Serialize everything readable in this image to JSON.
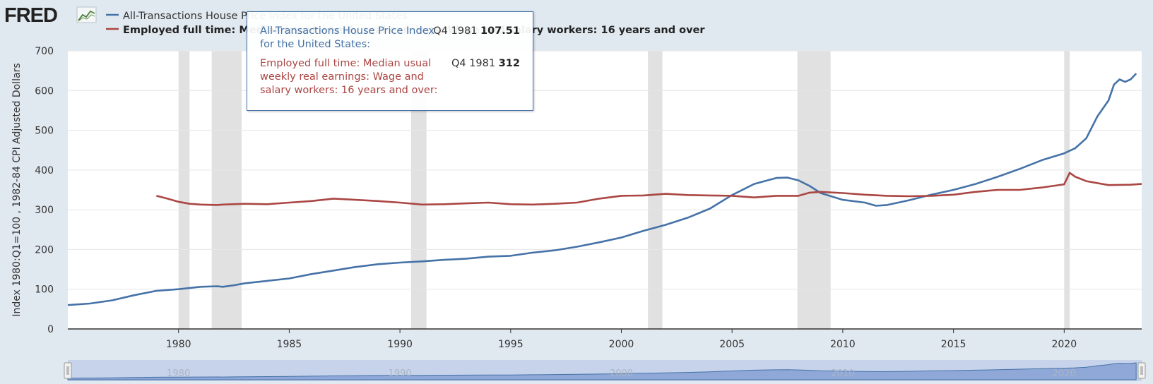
{
  "header": {
    "logo_text": "FRED",
    "logo_icon": "fred-chart-icon"
  },
  "colors": {
    "background": "#e1e9f0",
    "plot_bg": "#ffffff",
    "series1": "#4572a7",
    "series2": "#aa4643",
    "recession": "#e1e1e1",
    "navigator_fill": "#8fa8d8"
  },
  "tooltip": {
    "s1_name": "All-Transactions House Price Index for the United States:",
    "s1_period": "Q4 1981",
    "s1_value": "107.51",
    "s2_name": "Employed full time: Median usual weekly real earnings: Wage and salary workers: 16 years and over:",
    "s2_period": "Q4 1981",
    "s2_value": "312"
  },
  "chart_data": {
    "type": "line",
    "ylabel": "Index 1980:Q1=100 , 1982-84 CPI Adjusted Dollars",
    "ylim": [
      0,
      700
    ],
    "yticks": [
      0,
      100,
      200,
      300,
      400,
      500,
      600,
      700
    ],
    "xlim": [
      1975.0,
      2023.5
    ],
    "xticks": [
      1980,
      1985,
      1990,
      1995,
      2000,
      2005,
      2010,
      2015,
      2020
    ],
    "grid": true,
    "legend_placement": "top-left",
    "recessions": [
      [
        1980.0,
        1980.5
      ],
      [
        1981.5,
        1982.85
      ],
      [
        1990.5,
        1991.2
      ],
      [
        2001.2,
        2001.85
      ],
      [
        2007.95,
        2009.45
      ],
      [
        2020.0,
        2020.25
      ]
    ],
    "series": [
      {
        "name": "All-Transactions House Price Index for the United States",
        "color": "#4572a7",
        "x": [
          1975.0,
          1976.0,
          1977.0,
          1978.0,
          1979.0,
          1980.0,
          1981.0,
          1981.75,
          1982.0,
          1982.5,
          1983.0,
          1984.0,
          1985.0,
          1986.0,
          1987.0,
          1988.0,
          1989.0,
          1990.0,
          1991.0,
          1992.0,
          1993.0,
          1994.0,
          1995.0,
          1996.0,
          1997.0,
          1998.0,
          1999.0,
          2000.0,
          2001.0,
          2002.0,
          2003.0,
          2004.0,
          2005.0,
          2006.0,
          2007.0,
          2007.5,
          2008.0,
          2008.5,
          2009.0,
          2010.0,
          2011.0,
          2011.5,
          2012.0,
          2013.0,
          2014.0,
          2015.0,
          2016.0,
          2017.0,
          2018.0,
          2019.0,
          2020.0,
          2020.5,
          2021.0,
          2021.5,
          2022.0,
          2022.25,
          2022.5,
          2022.75,
          2023.0,
          2023.25
        ],
        "y": [
          60,
          64,
          72,
          85,
          96,
          100,
          106,
          107.51,
          106,
          110,
          115,
          121,
          127,
          138,
          147,
          156,
          163,
          167,
          170,
          174,
          177,
          182,
          184,
          192,
          198,
          207,
          218,
          230,
          247,
          262,
          280,
          303,
          337,
          365,
          380,
          381,
          374,
          360,
          342,
          325,
          318,
          310,
          312,
          324,
          338,
          350,
          365,
          383,
          403,
          425,
          442,
          455,
          480,
          535,
          575,
          615,
          628,
          622,
          628,
          643
        ]
      },
      {
        "name": "Employed full time: Median usual weekly real earnings: Wage and salary workers: 16 years and over",
        "color": "#aa4643",
        "x": [
          1979.0,
          1979.5,
          1980.0,
          1980.5,
          1981.0,
          1981.75,
          1982.0,
          1983.0,
          1984.0,
          1985.0,
          1986.0,
          1987.0,
          1988.0,
          1989.0,
          1990.0,
          1991.0,
          1992.0,
          1993.0,
          1994.0,
          1995.0,
          1996.0,
          1997.0,
          1998.0,
          1999.0,
          2000.0,
          2001.0,
          2002.0,
          2003.0,
          2004.0,
          2005.0,
          2006.0,
          2007.0,
          2008.0,
          2008.5,
          2009.0,
          2010.0,
          2011.0,
          2012.0,
          2013.0,
          2014.0,
          2015.0,
          2016.0,
          2017.0,
          2018.0,
          2019.0,
          2020.0,
          2020.25,
          2020.5,
          2021.0,
          2022.0,
          2023.0,
          2023.5
        ],
        "y": [
          335,
          328,
          320,
          315,
          313,
          312,
          313,
          315,
          314,
          318,
          322,
          328,
          325,
          322,
          318,
          313,
          314,
          316,
          318,
          314,
          313,
          315,
          318,
          328,
          335,
          336,
          340,
          337,
          336,
          335,
          331,
          335,
          335,
          343,
          345,
          342,
          338,
          335,
          334,
          335,
          338,
          345,
          350,
          350,
          356,
          364,
          393,
          383,
          372,
          362,
          363,
          365
        ]
      }
    ],
    "navigator": {
      "xticks": [
        1980,
        1990,
        2000,
        2010,
        2020
      ]
    }
  }
}
